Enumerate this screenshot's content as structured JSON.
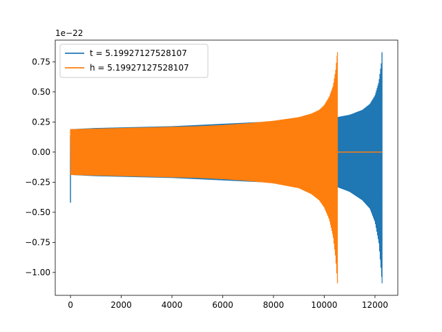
{
  "chart_data": {
    "type": "line",
    "title": "",
    "xlabel": "",
    "ylabel": "",
    "offset_text": "1e−22",
    "xlim": [
      -600,
      12900
    ],
    "ylim": [
      -1.19,
      0.93
    ],
    "y_multiplier": 1e-22,
    "xticks": [
      0,
      2000,
      4000,
      6000,
      8000,
      10000,
      12000
    ],
    "xtick_labels": [
      "0",
      "2000",
      "4000",
      "6000",
      "8000",
      "10000",
      "12000"
    ],
    "yticks": [
      -1.0,
      -0.75,
      -0.5,
      -0.25,
      0.0,
      0.25,
      0.5,
      0.75
    ],
    "ytick_labels": [
      "−1.00",
      "−0.75",
      "−0.50",
      "−0.25",
      "0.00",
      "0.25",
      "0.50",
      "0.75"
    ],
    "grid": false,
    "legend_position": "upper-left",
    "series": [
      {
        "name": "t = 5.19927127528107",
        "color": "#1f77b4",
        "envelope_x": [
          0,
          1000,
          2000,
          3000,
          4000,
          5000,
          6000,
          7000,
          8000,
          9000,
          9500,
          10000,
          10500,
          11000,
          11500,
          11800,
          12000,
          12150,
          12250,
          12280
        ],
        "envelope_upper": [
          0.19,
          0.2,
          0.205,
          0.21,
          0.215,
          0.225,
          0.235,
          0.245,
          0.255,
          0.265,
          0.27,
          0.28,
          0.29,
          0.31,
          0.35,
          0.4,
          0.47,
          0.58,
          0.74,
          0.83
        ],
        "envelope_lower": [
          -0.19,
          -0.2,
          -0.205,
          -0.21,
          -0.215,
          -0.225,
          -0.235,
          -0.245,
          -0.255,
          -0.265,
          -0.27,
          -0.28,
          -0.29,
          -0.33,
          -0.4,
          -0.47,
          -0.58,
          -0.75,
          -1.0,
          -1.09
        ],
        "start_spike_min": -0.42,
        "start_spike_max": 0.14
      },
      {
        "name": "h = 5.19927127528107",
        "color": "#ff7f0e",
        "envelope_x": [
          0,
          1000,
          2000,
          3000,
          4000,
          5000,
          6000,
          7000,
          8000,
          9000,
          9500,
          9800,
          10000,
          10200,
          10350,
          10450,
          10520
        ],
        "envelope_upper": [
          0.19,
          0.195,
          0.2,
          0.205,
          0.21,
          0.215,
          0.225,
          0.24,
          0.26,
          0.29,
          0.32,
          0.35,
          0.39,
          0.46,
          0.55,
          0.68,
          0.83
        ],
        "envelope_lower": [
          -0.19,
          -0.195,
          -0.2,
          -0.205,
          -0.21,
          -0.215,
          -0.225,
          -0.24,
          -0.26,
          -0.3,
          -0.35,
          -0.4,
          -0.46,
          -0.56,
          -0.7,
          -0.88,
          -1.09
        ],
        "flat_after_x": [
          10520,
          12280
        ],
        "flat_value": 0.0
      }
    ]
  }
}
